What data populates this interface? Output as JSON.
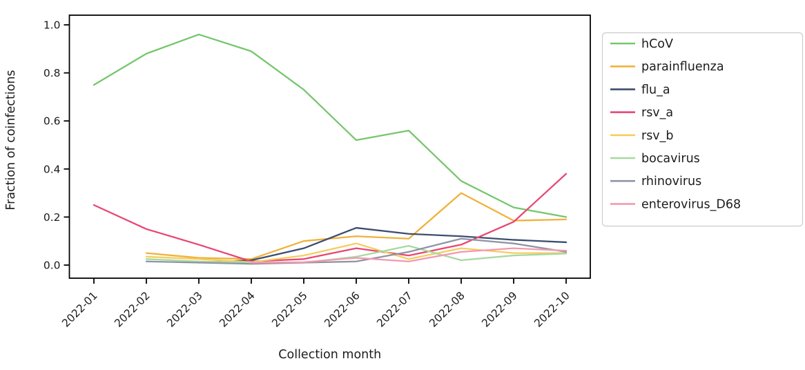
{
  "figure": {
    "background_color": "#ffffff",
    "text_color": "#1c1c1c",
    "axis_color": "#000000",
    "legend_border_color": "#cccccc",
    "legend_background": "#ffffff"
  },
  "chart_data": {
    "type": "line",
    "title": "",
    "xlabel": "Collection month",
    "ylabel": "Fraction of coinfections",
    "categories": [
      "2022-01",
      "2022-02",
      "2022-03",
      "2022-04",
      "2022-05",
      "2022-06",
      "2022-07",
      "2022-08",
      "2022-09",
      "2022-10"
    ],
    "x_tick_rotation": 45,
    "yticks": [
      0.0,
      0.2,
      0.4,
      0.6,
      0.8,
      1.0
    ],
    "ytick_labels": [
      "0.0",
      "0.2",
      "0.4",
      "0.6",
      "0.8",
      "1.0"
    ],
    "ylim": [
      0.0,
      1.0
    ],
    "grid": false,
    "legend_position": "outside-right",
    "series": [
      {
        "name": "hCoV",
        "color": "#76c66d",
        "values": [
          0.75,
          0.88,
          0.96,
          0.89,
          0.73,
          0.52,
          0.56,
          0.35,
          0.24,
          0.2
        ]
      },
      {
        "name": "parainfluenza",
        "color": "#f0b13b",
        "values": [
          null,
          0.05,
          0.03,
          0.025,
          0.1,
          0.12,
          0.11,
          0.3,
          0.185,
          0.19
        ]
      },
      {
        "name": "flu_a",
        "color": "#3c4d6e",
        "values": [
          null,
          null,
          0.01,
          0.02,
          0.07,
          0.155,
          0.13,
          0.12,
          0.105,
          0.095
        ]
      },
      {
        "name": "rsv_a",
        "color": "#e94672",
        "values": [
          0.25,
          0.15,
          0.085,
          0.015,
          0.025,
          0.07,
          0.04,
          0.085,
          0.18,
          0.38
        ]
      },
      {
        "name": "rsv_b",
        "color": "#f5cd5f",
        "values": [
          null,
          0.035,
          0.025,
          0.012,
          0.04,
          0.09,
          0.025,
          0.07,
          0.05,
          0.05
        ]
      },
      {
        "name": "bocavirus",
        "color": "#a7d9a0",
        "values": [
          null,
          0.025,
          0.015,
          0.01,
          0.01,
          0.035,
          0.08,
          0.02,
          0.04,
          0.048
        ]
      },
      {
        "name": "rhinovirus",
        "color": "#8d95a5",
        "values": [
          null,
          0.015,
          0.01,
          0.005,
          0.01,
          0.015,
          0.055,
          0.11,
          0.09,
          0.055
        ]
      },
      {
        "name": "enterovirus_D68",
        "color": "#f498af",
        "values": [
          null,
          null,
          null,
          0.01,
          0.012,
          0.03,
          0.015,
          0.055,
          0.07,
          0.06
        ]
      }
    ]
  }
}
